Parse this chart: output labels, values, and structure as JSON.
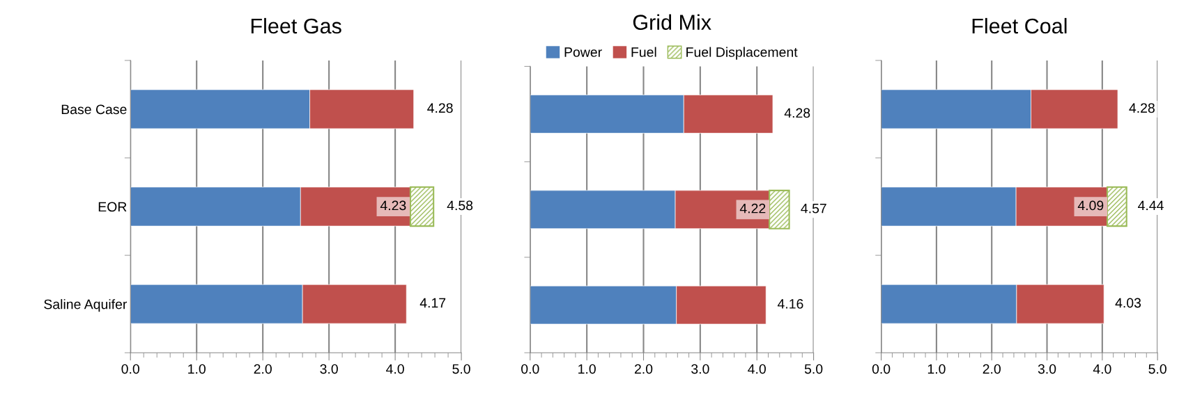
{
  "chart_data": [
    {
      "type": "bar",
      "orientation": "horizontal",
      "stacked": true,
      "title": "Fleet Gas",
      "categories": [
        "Base Case",
        "EOR",
        "Saline Aquifer"
      ],
      "series": [
        {
          "color": "#4f81bd",
          "values": [
            2.71,
            2.57,
            2.6
          ]
        },
        {
          "color": "#c0504d",
          "values": [
            1.57,
            1.66,
            1.57
          ]
        },
        {
          "color": "#9bbb59",
          "values": [
            null,
            0.35,
            null
          ]
        }
      ],
      "annotations": [
        {
          "text": "4.23",
          "x": 4.23,
          "y": "EOR"
        }
      ],
      "totals": [
        "4.28",
        "4.58",
        "4.17"
      ],
      "xlim": [
        0,
        5
      ],
      "xticks": [
        {
          "value": 0,
          "label": "0.0"
        },
        {
          "value": 1,
          "label": "1.0"
        },
        {
          "value": 2,
          "label": "2.0"
        },
        {
          "value": 3,
          "label": "3.0"
        },
        {
          "value": 4,
          "label": "4.0"
        },
        {
          "value": 5,
          "label": "5.0"
        }
      ],
      "grid": "x"
    },
    {
      "type": "bar",
      "orientation": "horizontal",
      "stacked": true,
      "title": "Grid Mix",
      "categories": [
        "Base Case",
        "EOR",
        "Saline Aquifer"
      ],
      "series": [
        {
          "name": "Power",
          "color": "#4f81bd",
          "values": [
            2.71,
            2.56,
            2.58
          ]
        },
        {
          "name": "Fuel",
          "color": "#c0504d",
          "values": [
            1.57,
            1.66,
            1.58
          ]
        },
        {
          "name": "Fuel Displacement",
          "color": "#9bbb59",
          "values": [
            null,
            0.35,
            null
          ]
        }
      ],
      "annotations": [
        {
          "text": "4.22",
          "x": 4.22,
          "y": "EOR"
        }
      ],
      "totals": [
        "4.28",
        "4.57",
        "4.16"
      ],
      "xlim": [
        0,
        5
      ],
      "xticks": [
        {
          "value": 0,
          "label": "0.0"
        },
        {
          "value": 1,
          "label": "1.0"
        },
        {
          "value": 2,
          "label": "2.0"
        },
        {
          "value": 3,
          "label": "3.0"
        },
        {
          "value": 4,
          "label": "4.0"
        },
        {
          "value": 5,
          "label": "5.0"
        }
      ],
      "grid": "x",
      "legend": "top",
      "tick_labels": "x"
    },
    {
      "type": "bar",
      "orientation": "horizontal",
      "stacked": true,
      "title": "Fleet Coal",
      "categories": [
        "Base Case",
        "EOR",
        "Saline Aquifer"
      ],
      "series": [
        {
          "color": "#4f81bd",
          "values": [
            2.71,
            2.44,
            2.45
          ]
        },
        {
          "color": "#c0504d",
          "values": [
            1.57,
            1.65,
            1.58
          ]
        },
        {
          "color": "#9bbb59",
          "values": [
            null,
            0.35,
            null
          ]
        }
      ],
      "annotations": [
        {
          "text": "4.09",
          "x": 4.09,
          "y": "EOR"
        }
      ],
      "totals": [
        "4.28",
        "4.44",
        "4.03"
      ],
      "xlim": [
        0,
        5
      ],
      "xticks": [
        {
          "value": 0,
          "label": "0.0"
        },
        {
          "value": 1,
          "label": "1.0"
        },
        {
          "value": 2,
          "label": "2.0"
        },
        {
          "value": 3,
          "label": "3.0"
        },
        {
          "value": 4,
          "label": "4.0"
        },
        {
          "value": 5,
          "label": "5.0"
        }
      ],
      "grid": "x",
      "tick_labels": "x"
    }
  ]
}
